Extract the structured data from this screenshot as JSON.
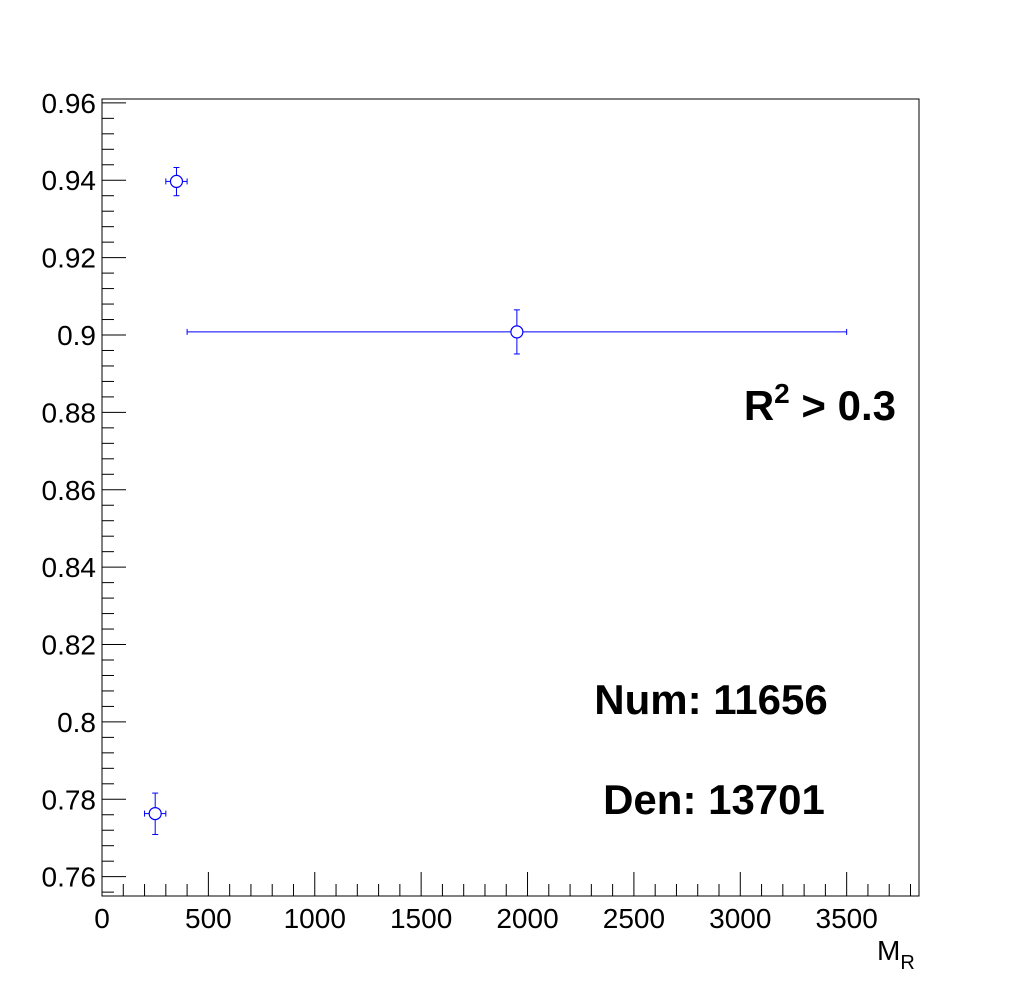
{
  "chart_data": {
    "type": "scatter",
    "title": "",
    "xlabel": "M",
    "xlabel_subscript": "R",
    "ylabel": "",
    "xlim": [
      0,
      3840
    ],
    "ylim": [
      0.755,
      0.961
    ],
    "grid": false,
    "legend": "none",
    "x_ticks": [
      0,
      500,
      1000,
      1500,
      2000,
      2500,
      3000,
      3500
    ],
    "x_tick_labels": [
      "0",
      "500",
      "1000",
      "1500",
      "2000",
      "2500",
      "3000",
      "3500"
    ],
    "y_ticks": [
      0.76,
      0.78,
      0.8,
      0.82,
      0.84,
      0.86,
      0.88,
      0.9,
      0.92,
      0.94,
      0.96
    ],
    "y_tick_labels": [
      "0.76",
      "0.78",
      "0.8",
      "0.82",
      "0.84",
      "0.86",
      "0.88",
      "0.9",
      "0.92",
      "0.94",
      "0.96"
    ],
    "series": [
      {
        "marker": "open-circle",
        "color": "#0000ff",
        "points": [
          {
            "x": 250,
            "y": 0.7763,
            "xerr_low": 50,
            "xerr_high": 50,
            "yerr_low": 0.0054,
            "yerr_high": 0.0053
          },
          {
            "x": 350,
            "y": 0.9397,
            "xerr_low": 50,
            "xerr_high": 50,
            "yerr_low": 0.0037,
            "yerr_high": 0.0036
          },
          {
            "x": 1950,
            "y": 0.9008,
            "xerr_low": 1550,
            "xerr_high": 1550,
            "yerr_low": 0.0057,
            "yerr_high": 0.0057
          }
        ]
      }
    ],
    "annotations": [
      {
        "text_main": "R",
        "superscript": "2",
        "text_rest": " > 0.3"
      },
      {
        "text": "Num: 11656"
      },
      {
        "text": "Den: 13701"
      }
    ]
  }
}
